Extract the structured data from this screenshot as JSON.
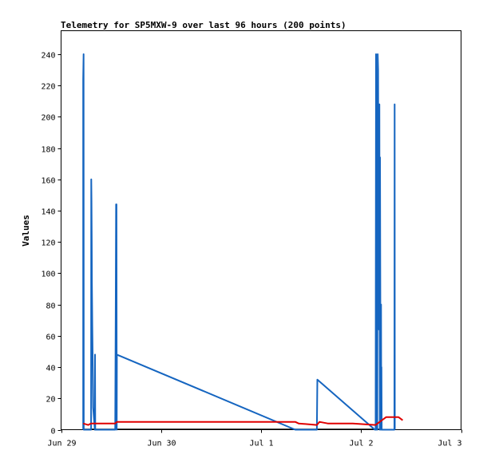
{
  "chart_data": {
    "type": "line",
    "title": "Telemetry for SP5MXW-9 over last 96 hours (200 points)",
    "xlabel": "",
    "ylabel": "Values",
    "ylim": [
      0,
      255
    ],
    "xlim": [
      0,
      96
    ],
    "x_unit": "hours from Jun 29 00:00",
    "xticks": [
      {
        "x": 0,
        "label": "Jun 29"
      },
      {
        "x": 24,
        "label": "Jun 30"
      },
      {
        "x": 48,
        "label": "Jul 1"
      },
      {
        "x": 72,
        "label": "Jul 2"
      },
      {
        "x": 96,
        "label": "Jul 3"
      }
    ],
    "yticks": [
      0,
      20,
      40,
      60,
      80,
      100,
      120,
      140,
      160,
      180,
      200,
      220,
      240
    ],
    "grid": false,
    "series": [
      {
        "color": "#1565c0",
        "points": [
          [
            5.3,
            0
          ],
          [
            5.3,
            224
          ],
          [
            5.4,
            240
          ],
          [
            5.45,
            0
          ],
          [
            7.2,
            0
          ],
          [
            7.25,
            160
          ],
          [
            7.3,
            146
          ],
          [
            7.35,
            120
          ],
          [
            7.4,
            94
          ],
          [
            7.5,
            66
          ],
          [
            7.6,
            40
          ],
          [
            7.7,
            14
          ],
          [
            8.1,
            0
          ],
          [
            8.15,
            48
          ],
          [
            8.2,
            0
          ],
          [
            13.0,
            0
          ],
          [
            13.1,
            72
          ],
          [
            13.2,
            144
          ],
          [
            13.3,
            144
          ],
          [
            13.35,
            0
          ],
          [
            13.4,
            48
          ],
          [
            56.2,
            0
          ],
          [
            61.4,
            0
          ],
          [
            61.45,
            16
          ],
          [
            61.5,
            32
          ],
          [
            75.3,
            0
          ],
          [
            75.5,
            0
          ],
          [
            75.6,
            240
          ],
          [
            75.7,
            0
          ],
          [
            75.8,
            208
          ],
          [
            75.9,
            0
          ],
          [
            76.0,
            240
          ],
          [
            76.1,
            230
          ],
          [
            76.2,
            100
          ],
          [
            76.3,
            64
          ],
          [
            76.4,
            208
          ],
          [
            76.5,
            0
          ],
          [
            76.55,
            174
          ],
          [
            76.6,
            104
          ],
          [
            76.7,
            0
          ],
          [
            76.8,
            80
          ],
          [
            76.85,
            0
          ],
          [
            76.9,
            40
          ],
          [
            76.95,
            0
          ],
          [
            80.0,
            0
          ],
          [
            80.05,
            208
          ],
          [
            80.1,
            0
          ]
        ]
      },
      {
        "color": "#e00000",
        "points": [
          [
            5.3,
            4
          ],
          [
            6.5,
            3
          ],
          [
            7.2,
            4
          ],
          [
            8.2,
            4
          ],
          [
            13.0,
            4
          ],
          [
            13.4,
            5
          ],
          [
            56.2,
            5
          ],
          [
            57.0,
            4
          ],
          [
            61.4,
            3
          ],
          [
            62.0,
            5
          ],
          [
            64.0,
            4
          ],
          [
            70.0,
            4
          ],
          [
            75.5,
            3
          ],
          [
            77.0,
            6
          ],
          [
            78.0,
            8
          ],
          [
            81.0,
            8
          ],
          [
            82.0,
            6
          ]
        ]
      }
    ]
  }
}
